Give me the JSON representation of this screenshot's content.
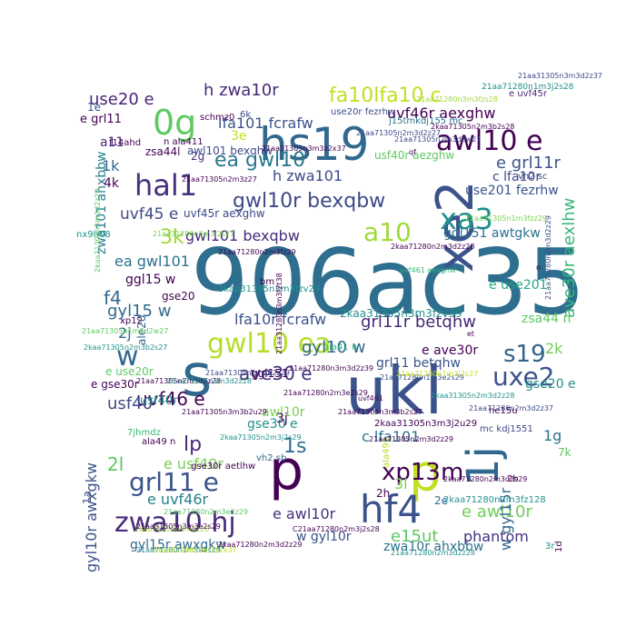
{
  "word_cloud": {
    "words": [
      {
        "text": "906ac35",
        "color": "#2e6e8e"
      },
      {
        "text": "ukl",
        "color": "#3b528b"
      },
      {
        "text": "p",
        "color": "#440154"
      },
      {
        "text": "s",
        "color": "#31688e"
      },
      {
        "text": "p",
        "color": "#c2df23"
      },
      {
        "text": "1j",
        "color": "#31688e"
      },
      {
        "text": "hs19",
        "color": "#31688e"
      },
      {
        "text": "0g",
        "color": "#5ec962"
      },
      {
        "text": "xe2",
        "color": "#3b528b"
      },
      {
        "text": "hf4",
        "color": "#3b528b"
      },
      {
        "text": "hal1",
        "color": "#46327e"
      },
      {
        "text": "gwl10 ea",
        "color": "#b5de2b"
      },
      {
        "text": "zwa10 hj",
        "color": "#472d7b"
      },
      {
        "text": "awl10 e",
        "color": "#440154"
      },
      {
        "text": "xa3",
        "color": "#21918c"
      },
      {
        "text": "a10",
        "color": "#a0da39"
      },
      {
        "text": "uxe2",
        "color": "#3b528b"
      },
      {
        "text": "s19",
        "color": "#33638d"
      },
      {
        "text": "xp13m",
        "color": "#440154"
      },
      {
        "text": "grl11 e",
        "color": "#3b528b"
      },
      {
        "text": "ea gwl10",
        "color": "#2a788e"
      },
      {
        "text": "gwl10r bexqbw",
        "color": "#3e4989"
      },
      {
        "text": "fa10lfa10 c",
        "color": "#c2df23"
      },
      {
        "text": "use20 e",
        "color": "#482475"
      },
      {
        "text": "h zwa10r",
        "color": "#482878"
      },
      {
        "text": "lfa101 fcrafw",
        "color": "#3b528b"
      },
      {
        "text": "uvf46r aexghw",
        "color": "#440154"
      },
      {
        "text": "e grl11r",
        "color": "#3b528b"
      },
      {
        "text": "h zwa101",
        "color": "#3e4a89"
      },
      {
        "text": "gwl101 bexqbw",
        "color": "#472c7a"
      },
      {
        "text": "uvf45 e",
        "color": "#3e4a89"
      },
      {
        "text": "zwa101 ahxbbw",
        "color": "#277f8e"
      },
      {
        "text": "ave30r aexlhw",
        "color": "#35b779"
      },
      {
        "text": "gyl15 w",
        "color": "#31688e"
      },
      {
        "text": "f4",
        "color": "#31688e"
      },
      {
        "text": "3k",
        "color": "#a0da39"
      },
      {
        "text": "ea gwl101",
        "color": "#2c728e"
      },
      {
        "text": "lfa10r fcrafw",
        "color": "#3b528b"
      },
      {
        "text": "grl11r betqhw",
        "color": "#482878"
      },
      {
        "text": "ave30 e",
        "color": "#46327e"
      },
      {
        "text": "uvf46 e",
        "color": "#440154"
      },
      {
        "text": "gyl10 w",
        "color": "#31688e"
      },
      {
        "text": "usf40",
        "color": "#3e4989"
      },
      {
        "text": "lp",
        "color": "#482878"
      },
      {
        "text": "1s",
        "color": "#2e6e8e"
      },
      {
        "text": "2l",
        "color": "#5ec962"
      },
      {
        "text": "e usf40r",
        "color": "#7ad151"
      },
      {
        "text": "e uvf46r",
        "color": "#26828e"
      },
      {
        "text": "gyl10r awxgkw",
        "color": "#3b528b"
      },
      {
        "text": "gyl15r awxgkw",
        "color": "#31688e"
      },
      {
        "text": "e awl10r",
        "color": "#46327e"
      },
      {
        "text": "w gyl10r",
        "color": "#3b528b"
      },
      {
        "text": "e15ut",
        "color": "#5ec962"
      },
      {
        "text": "phantom",
        "color": "#46327e"
      },
      {
        "text": "e awl10r",
        "color": "#6ece58"
      },
      {
        "text": "w gyl15r",
        "color": "#31688e"
      },
      {
        "text": "zwa10r ahxbbw",
        "color": "#2c728e"
      },
      {
        "text": "c lfa101",
        "color": "#2c728e"
      },
      {
        "text": "gse30 e",
        "color": "#21918c"
      },
      {
        "text": "awl10r",
        "color": "#7ad151"
      },
      {
        "text": "use201 fezrhw",
        "color": "#3b528b"
      },
      {
        "text": "c lfa10r",
        "color": "#3e4a89"
      },
      {
        "text": "ggl151 awtgkw",
        "color": "#2c728e"
      },
      {
        "text": "e use201",
        "color": "#22a884"
      },
      {
        "text": "zsa44 n",
        "color": "#5ec962"
      },
      {
        "text": "2k",
        "color": "#6ece58"
      },
      {
        "text": "1g",
        "color": "#2c728e"
      },
      {
        "text": "gse20 e",
        "color": "#21918c"
      },
      {
        "text": "e ave30r",
        "color": "#440154"
      },
      {
        "text": "grl11 betqhw",
        "color": "#3b528b"
      },
      {
        "text": "w",
        "color": "#31688e"
      },
      {
        "text": "1k",
        "color": "#31688e"
      },
      {
        "text": "a11",
        "color": "#482878"
      },
      {
        "text": "4k",
        "color": "#440154"
      },
      {
        "text": "e grl11",
        "color": "#440154"
      },
      {
        "text": "usf40r",
        "color": "#21918c"
      },
      {
        "text": "e uvf45r",
        "color": "#482878"
      },
      {
        "text": "1e",
        "color": "#3b528b"
      },
      {
        "text": "3e",
        "color": "#c2df23"
      },
      {
        "text": "2g",
        "color": "#46327e"
      },
      {
        "text": "2j",
        "color": "#31688e"
      },
      {
        "text": "3j",
        "color": "#440154"
      },
      {
        "text": "3l",
        "color": "#7ad151"
      },
      {
        "text": "2h",
        "color": "#440154"
      },
      {
        "text": "2e",
        "color": "#31688e"
      },
      {
        "text": "2b",
        "color": "#440154"
      },
      {
        "text": "7k",
        "color": "#5ec962"
      },
      {
        "text": "1a",
        "color": "#3b528b"
      },
      {
        "text": "ggl15 w",
        "color": "#440154"
      },
      {
        "text": "gse20",
        "color": "#440154"
      },
      {
        "text": "ggl151",
        "color": "#440154"
      },
      {
        "text": "ale20",
        "color": "#31688e"
      },
      {
        "text": "e use20r",
        "color": "#5ec962"
      },
      {
        "text": "e gse30r",
        "color": "#440154"
      },
      {
        "text": "awl101 bexqhw",
        "color": "#3e4a89"
      },
      {
        "text": "uvf45r aexghw",
        "color": "#3e4989"
      },
      {
        "text": "zsa44l",
        "color": "#440154"
      },
      {
        "text": "n ala411",
        "color": "#440154"
      },
      {
        "text": "schmz0",
        "color": "#440154"
      },
      {
        "text": "6k",
        "color": "#3e4989"
      },
      {
        "text": "use20r fezrhw",
        "color": "#3e4989"
      },
      {
        "text": "j15tmkdj155 mc",
        "color": "#2c728e"
      },
      {
        "text": "usf40r aezghw",
        "color": "#5ec962"
      },
      {
        "text": "vh2 sc",
        "color": "#3b528b"
      },
      {
        "text": "gse30r aetlhw",
        "color": "#440154"
      },
      {
        "text": "he15u",
        "color": "#440154"
      },
      {
        "text": "mc kdj1551",
        "color": "#3e4989"
      },
      {
        "text": "vh2 sb",
        "color": "#31688e"
      },
      {
        "text": "ala41 n",
        "color": "#35b779"
      },
      {
        "text": "ala49 n",
        "color": "#440154"
      },
      {
        "text": "ala491",
        "color": "#b5de2b"
      },
      {
        "text": "nx9h08",
        "color": "#21918c"
      },
      {
        "text": "2kaa31305n3m3fzv39",
        "color": "#21918c"
      },
      {
        "text": "2kaa31305n3m3j2u29",
        "color": "#440154"
      },
      {
        "text": "2kaa31305n3m3fzv29",
        "color": "#21918c"
      },
      {
        "text": "21aa71280n2m3fz29",
        "color": "#440154"
      },
      {
        "text": "21aa71305n2m3d2z27",
        "color": "#3e4989"
      },
      {
        "text": "21aa71305n2m3d2w27",
        "color": "#3e4989"
      },
      {
        "text": "21aa31305n3m3d2z37",
        "color": "#3e4989"
      },
      {
        "text": "21aa71280n1m3j2s28",
        "color": "#21918c"
      },
      {
        "text": "21aa71280n3m3fzs28",
        "color": "#a0da39"
      },
      {
        "text": "21aa71305n2m3z27",
        "color": "#440154"
      },
      {
        "text": "2kaa71280n2m3d2z28",
        "color": "#440154"
      },
      {
        "text": "2kaa71280n2m3d2z29",
        "color": "#440154"
      },
      {
        "text": "2kaa71280n3m3z28",
        "color": "#a0da39"
      },
      {
        "text": "2kaa71280n2m3fz128",
        "color": "#21918c"
      },
      {
        "text": "21aa71280n1m3a2s29",
        "color": "#21918c"
      },
      {
        "text": "C21aa71280n2m3j2s28",
        "color": "#440154"
      },
      {
        "text": "21aa31280n3m3f2t38",
        "color": "#440154"
      },
      {
        "text": "2kaa71305n2m3b2s28",
        "color": "#440154"
      },
      {
        "text": "21aa71280n1m3e2s29",
        "color": "#3b528b"
      },
      {
        "text": "21aa71305n1m3d2w27",
        "color": "#5ec962"
      },
      {
        "text": "21aa71305n3m3b2s27",
        "color": "#440154"
      },
      {
        "text": "2kaa31305n3m3d2z29",
        "color": "#5ec962"
      },
      {
        "text": "21aa31305n3m3z2x37",
        "color": "#440154"
      },
      {
        "text": "21aa71280n1m3j2s27",
        "color": "#c2df23"
      },
      {
        "text": "21aa71280n2m3e2s29",
        "color": "#440154"
      },
      {
        "text": "21aa71305n2m3d2z29",
        "color": "#440154"
      },
      {
        "text": "21aa71280n3m3d2z39",
        "color": "#440154"
      },
      {
        "text": "21aa71305n1m3d2z29",
        "color": "#3e4989"
      },
      {
        "text": "21aa71305n2m3d2z28",
        "color": "#440154"
      },
      {
        "text": "21aa71280n2m3d2z37",
        "color": "#3e4989"
      },
      {
        "text": "21aa71280n2m3d2z28",
        "color": "#21918c"
      },
      {
        "text": "2kaa71280n2m3d2s29",
        "color": "#440154"
      },
      {
        "text": "2kaa71305n2m3j2s29",
        "color": "#21918c"
      },
      {
        "text": "21aa31280n3m3j2s27",
        "color": "#7ad151"
      },
      {
        "text": "21aa31305n3m3e2s29",
        "color": "#440154"
      },
      {
        "text": "21aa31280n2m3z2x37",
        "color": "#c2df23"
      },
      {
        "text": "f14ahd",
        "color": "#440154"
      },
      {
        "text": "7jhmdz",
        "color": "#35b779"
      },
      {
        "text": "xp12",
        "color": "#440154"
      },
      {
        "text": "qf",
        "color": "#440154"
      },
      {
        "text": "bm",
        "color": "#440154"
      },
      {
        "text": "1d",
        "color": "#440154"
      },
      {
        "text": "3r",
        "color": "#21918c"
      },
      {
        "text": "et",
        "color": "#440154"
      },
      {
        "text": "n",
        "color": "#440154"
      },
      {
        "text": "uvf461 aexghw",
        "color": "#35b779"
      },
      {
        "text": "uvf461",
        "color": "#440154"
      },
      {
        "text": "21aa71280n2m3d2z29",
        "color": "#3b528b"
      },
      {
        "text": "2kaa71305n2m3b2s27",
        "color": "#21918c"
      },
      {
        "text": "2kaa31305n2m3d2z28",
        "color": "#21918c"
      },
      {
        "text": "21aa71305n3m3b2u29",
        "color": "#440154"
      },
      {
        "text": "21aa71305n1m3d2z28",
        "color": "#21918c"
      },
      {
        "text": "21aa71280n2m3e2z29",
        "color": "#5ec962"
      },
      {
        "text": "21aa71305n1m3fzz29",
        "color": "#7ad151"
      },
      {
        "text": "21aa71280n2m3e2s28",
        "color": "#440154"
      },
      {
        "text": "21aa71280n2m3b2s29",
        "color": "#21918c"
      },
      {
        "text": "21aa71280n3m3z2s27",
        "color": "#440154"
      },
      {
        "text": "21aa71280n2m3z2s27",
        "color": "#21918c"
      }
    ]
  }
}
